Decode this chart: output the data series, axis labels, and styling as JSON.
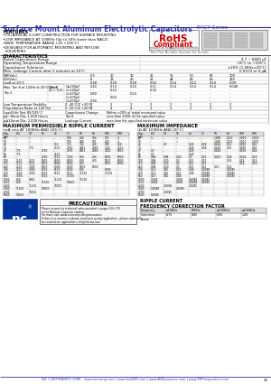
{
  "title": "Surface Mount Aluminum Electrolytic Capacitors",
  "series": "NACY Series",
  "features": [
    "CYLINDRICAL V-CHIP CONSTRUCTION FOR SURFACE MOUNTING",
    "LOW IMPEDANCE AT 100KHz (Up to 20% lower than NACZ)",
    "WIDE TEMPERATURE RANGE (-55 +105°C)",
    "DESIGNED FOR AUTOMATIC MOUNTING AND REFLOW",
    "SOLDERING"
  ],
  "char_rows": [
    [
      "Rated Capacitance Range",
      "4.7 ~ 6800 μF"
    ],
    [
      "Operating Temperature Range",
      "-55°C to +105°C"
    ],
    [
      "Capacitance Tolerance",
      "±20% (1.0KHz±20°C)"
    ],
    [
      "Max. Leakage Current after 2 minutes at 20°C",
      "0.01CV or 4 μA"
    ]
  ],
  "wv_vals": [
    "WV(Vdc)",
    "6.3",
    "10",
    "16",
    "25",
    "35",
    "50",
    "63",
    "100"
  ],
  "sv_vals": [
    "S.V(Vdc)",
    "8",
    "13",
    "20",
    "32",
    "44",
    "63",
    "80",
    "125"
  ],
  "tand_vals": [
    "tanδ at 20°C",
    "0.28",
    "0.20",
    "0.18",
    "0.16",
    "0.14",
    "0.12",
    "0.10",
    "0.09"
  ],
  "tand_label": "Max. Tan δ at 120Hz & 20°C",
  "test2_label": "Tan 2",
  "tand_b_label": "δ(β = 0.6)",
  "tan_b_rows": [
    [
      "C≤100μF",
      "0.40",
      "0.14",
      "0.10",
      "0.11",
      "0.14",
      "0.14",
      "0.14",
      "0.048"
    ],
    [
      "C>100μF",
      "-",
      "0.24",
      "-",
      "0.18",
      "-",
      "-",
      "-",
      "-"
    ],
    [
      "C>470μF",
      "0.80",
      "-",
      "0.24",
      "-",
      "-",
      "-",
      "-",
      "-"
    ],
    [
      "C>470μF",
      "-",
      "0.60",
      "-",
      "-",
      "-",
      "-",
      "-",
      "-"
    ],
    [
      "C>470μF",
      "0.90",
      "-",
      "-",
      "-",
      "-",
      "-",
      "-",
      "-"
    ]
  ],
  "low_temp_rows": [
    [
      "Low Temperature Stability",
      "Z -40°C/Z +20°C",
      "3",
      "2",
      "2",
      "2",
      "2",
      "2",
      "2",
      "2"
    ],
    [
      "(Impedance Ratio at 120 Hz)",
      "Z -55°C/Z +20°C",
      "8",
      "4",
      "4",
      "3",
      "3",
      "3",
      "3",
      "3"
    ]
  ],
  "life_rows": [
    [
      "Load/Life Test 85/105°C",
      "Capacitance Change",
      "Within ±20% of initial measured value"
    ],
    [
      "φ4~8mm Dia: 1,000 Hours",
      "Tan δ",
      "Less than 200% of the specified value"
    ],
    [
      "φ≥10mm Dia: 2,000 Hours",
      "Leakage Current",
      "max than the specified maximum value"
    ]
  ],
  "ripple_title": "MAXIMUM PERMISSIBLE RIPPLE CURRENT",
  "ripple_sub": "(mA rms AT 100KHz AND 105°C)",
  "imp_title": "MAXIMUM IMPEDANCE",
  "imp_sub": "(Ω AT 100KHz AND 20°C)",
  "col_labels": [
    "Cap.\n(μF)",
    "6.3",
    "10",
    "16",
    "25",
    "35",
    "50",
    "63",
    "100",
    "500"
  ],
  "ripple_rows": [
    [
      "4.7",
      "-",
      "√",
      "-",
      "-",
      "100",
      "200",
      "164",
      "155",
      "4"
    ],
    [
      "10",
      "-",
      "√",
      "-",
      "-",
      "100",
      "240",
      "195",
      "200",
      "4"
    ],
    [
      "22",
      "-",
      "-",
      "-",
      "250",
      "310",
      "304",
      "430",
      "180",
      "200"
    ],
    [
      "33",
      "-",
      "170",
      "-",
      "2500",
      "2750",
      "2451",
      "2880",
      "1.40",
      "2500"
    ],
    [
      "47",
      "175",
      "-",
      "2750",
      "-",
      "2750",
      "2451",
      "2880",
      "1250",
      "5000"
    ],
    [
      "56",
      "175",
      "-",
      "-",
      "2500",
      "-",
      "-",
      "-",
      "-",
      "-"
    ],
    [
      "68",
      "-",
      "-",
      "2750",
      "2500",
      "3000",
      "800",
      "400",
      "5000",
      "6000"
    ],
    [
      "100",
      "2500",
      "2500",
      "5000",
      "6000",
      "6000",
      "800",
      "400",
      "5000",
      "6000"
    ],
    [
      "150",
      "2500",
      "2500",
      "5000",
      "6000",
      "6000",
      "800",
      "-",
      "5000",
      "6000"
    ],
    [
      "220",
      "2500",
      "3000",
      "5000",
      "8000",
      "8000",
      "5800",
      "6000",
      "-",
      "-"
    ],
    [
      "330",
      "2500",
      "3000",
      "6500",
      "6500",
      "8000",
      "800",
      "-",
      "8000",
      "-"
    ],
    [
      "470",
      "3000",
      "3000",
      "6500",
      "6500",
      "8500",
      "11150",
      "-",
      "11150",
      "-"
    ],
    [
      "560",
      "3000",
      "-",
      "6500",
      "-",
      "11150",
      "-",
      "-",
      "-",
      "-"
    ],
    [
      "1000",
      "800",
      "8850",
      "-",
      "11150",
      "-",
      "15000",
      "-",
      "-",
      "-"
    ],
    [
      "1500",
      "800",
      "-",
      "11150",
      "-",
      "18000",
      "-",
      "-",
      "-",
      "-"
    ],
    [
      "2200",
      "-",
      "11150",
      "-",
      "18000",
      "-",
      "-",
      "-",
      "-",
      "-"
    ],
    [
      "3300",
      "11150",
      "-",
      "18000",
      "-",
      "-",
      "-",
      "-",
      "-",
      "-"
    ],
    [
      "4700",
      "-",
      "18000",
      "-",
      "-",
      "-",
      "-",
      "-",
      "-",
      "-"
    ],
    [
      "6800",
      "18000",
      "-",
      "-",
      "-",
      "-",
      "-",
      "-",
      "-",
      "-"
    ]
  ],
  "imp_rows": [
    [
      "4.7",
      "1.-",
      "-",
      "√",
      "-",
      "-",
      "1.485",
      "2500",
      "2.000",
      "2.000"
    ],
    [
      "10",
      "-",
      "-",
      "√",
      "-",
      "-",
      "1.485",
      "2500",
      "2.000",
      "2.000"
    ],
    [
      "22",
      "-",
      "0.7",
      "-",
      "0.28",
      "0.28",
      "0.444",
      "0.25",
      "0.580",
      "0.50"
    ],
    [
      "33",
      "-",
      "-",
      "-",
      "0.28",
      "0.28",
      "0.444",
      "0.25",
      "0.580",
      "0.50"
    ],
    [
      "47",
      "0.7",
      "-",
      "-",
      "0.28",
      "-",
      "0.444",
      "-",
      "0.500",
      "0.44"
    ],
    [
      "56",
      "0.7",
      "-",
      "-",
      "0.28",
      "-",
      "-",
      "-",
      "-",
      "-"
    ],
    [
      "68",
      "0.98",
      "0.98",
      "0.28",
      "0.3",
      "0.15",
      "0.020",
      "0.28",
      "0.024",
      "0.14"
    ],
    [
      "100",
      "0.98",
      "0.30",
      "0.3",
      "0.15",
      "0.15",
      "-",
      "0.14",
      "0.24",
      "0.14"
    ],
    [
      "150",
      "0.98",
      "0.30",
      "0.3",
      "0.15",
      "0.15",
      "-",
      "-",
      "0.24",
      "0.14"
    ],
    [
      "220",
      "0.98",
      "0.30",
      "0.3",
      "0.15",
      "0.15",
      "0.13",
      "0.14",
      "-",
      "-"
    ],
    [
      "330",
      "0.13",
      "0.55",
      "0.15",
      "0.08",
      "0.0088",
      "-",
      "0.0085",
      "-",
      "-"
    ],
    [
      "470",
      "0.13",
      "0.55",
      "0.15",
      "0.08",
      "0.0088",
      "-",
      "0.0085",
      "-",
      "-"
    ],
    [
      "560",
      "0.13",
      "0.55",
      "0.08",
      "-",
      "0.0088",
      "-",
      "0.0085",
      "-",
      "-"
    ],
    [
      "1000",
      "0.008",
      "-",
      "0.058",
      "0.0088",
      "0.0085",
      "-",
      "-",
      "-",
      "-"
    ],
    [
      "1500",
      "0.008",
      "-",
      "0.058",
      "0.0088",
      "0.0085",
      "-",
      "-",
      "-",
      "-"
    ],
    [
      "2200",
      "-",
      "0.0088",
      "-",
      "0.0085",
      "-",
      "-",
      "-",
      "-",
      "-"
    ],
    [
      "3300",
      "0.0088",
      "-",
      "0.0085",
      "-",
      "-",
      "-",
      "-",
      "-",
      "-"
    ],
    [
      "4700",
      "-",
      "0.0085",
      "-",
      "-",
      "-",
      "-",
      "-",
      "-",
      "-"
    ],
    [
      "6800",
      "0.0085",
      "-",
      "-",
      "-",
      "-",
      "-",
      "-",
      "-",
      "-"
    ]
  ],
  "precautions_title": "PRECAUTIONS",
  "prec_lines": [
    "Please review the technical notes provided in pages 516-179",
    "in the Nichicon Capacitor catalog.",
    "For more visit: www.nicecomp.com/precautions",
    "If there is a concern or please send your quality application - please notes will",
    "be resolved at: applications.info@nicomp.com"
  ],
  "ripple_cur_title": "RIPPLE CURRENT",
  "freq_cor_title": "FREQUENCY CORRECTION FACTOR",
  "freq_headers": [
    "Frequency",
    "≤10KHz",
    "50KHz",
    "≥100KHz",
    "≥100KHz"
  ],
  "freq_values": [
    "Correction\nFactor",
    "0.75",
    "0.85",
    "0.95",
    "1.00"
  ],
  "footer": "NIC COMPONENTS CORP.   www.niccomp.com | www.lowESR.com | www.AVXpassives.com | www.SMTmagnetics.com",
  "page_num": "21",
  "hdr_color": "#3333aa",
  "rohs_color": "#cc0000",
  "bg": "#ffffff"
}
